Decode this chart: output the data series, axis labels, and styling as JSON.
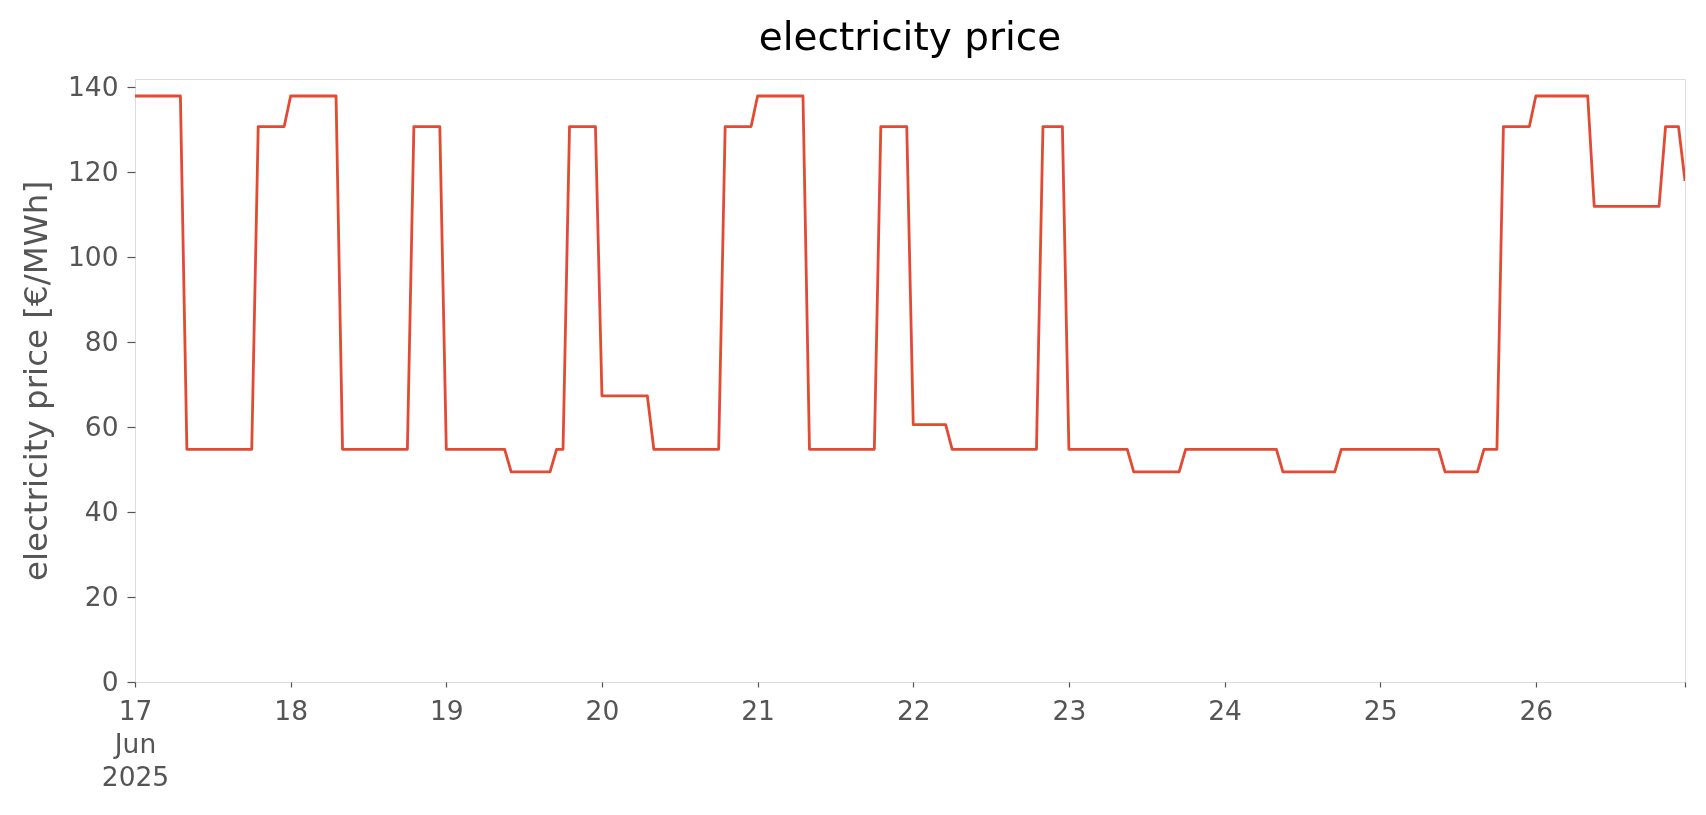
{
  "chart_data": {
    "type": "line",
    "title": "electricity price",
    "ylabel": "electricity price [€/MWh]",
    "x": [
      "2025-06-17T00:00",
      "2025-06-17T07:00",
      "2025-06-17T08:00",
      "2025-06-17T18:00",
      "2025-06-17T19:00",
      "2025-06-17T23:00",
      "2025-06-18T00:00",
      "2025-06-18T07:00",
      "2025-06-18T08:00",
      "2025-06-18T18:00",
      "2025-06-18T19:00",
      "2025-06-18T23:00",
      "2025-06-19T00:00",
      "2025-06-19T09:00",
      "2025-06-19T10:00",
      "2025-06-19T16:00",
      "2025-06-19T17:00",
      "2025-06-19T18:00",
      "2025-06-19T19:00",
      "2025-06-19T23:00",
      "2025-06-20T00:00",
      "2025-06-20T07:00",
      "2025-06-20T08:00",
      "2025-06-20T18:00",
      "2025-06-20T19:00",
      "2025-06-20T23:00",
      "2025-06-21T00:00",
      "2025-06-21T07:00",
      "2025-06-21T08:00",
      "2025-06-21T18:00",
      "2025-06-21T19:00",
      "2025-06-21T23:00",
      "2025-06-22T00:00",
      "2025-06-22T05:00",
      "2025-06-22T06:00",
      "2025-06-22T19:00",
      "2025-06-22T20:00",
      "2025-06-22T23:00",
      "2025-06-23T00:00",
      "2025-06-23T09:00",
      "2025-06-23T10:00",
      "2025-06-23T17:00",
      "2025-06-23T18:00",
      "2025-06-24T08:00",
      "2025-06-24T09:00",
      "2025-06-24T17:00",
      "2025-06-24T18:00",
      "2025-06-25T09:00",
      "2025-06-25T10:00",
      "2025-06-25T15:00",
      "2025-06-25T16:00",
      "2025-06-25T18:00",
      "2025-06-25T19:00",
      "2025-06-25T23:00",
      "2025-06-26T00:00",
      "2025-06-26T08:00",
      "2025-06-26T09:00",
      "2025-06-26T19:00",
      "2025-06-26T20:00",
      "2025-06-26T22:00",
      "2025-06-26T23:00"
    ],
    "series": [
      {
        "color": "#e24a33",
        "values": [
          138,
          138,
          54.8,
          54.8,
          130.8,
          130.8,
          138,
          138,
          54.8,
          54.8,
          130.8,
          130.8,
          54.8,
          54.8,
          49.5,
          49.5,
          54.8,
          54.8,
          130.8,
          130.8,
          67.4,
          67.4,
          54.8,
          54.8,
          130.8,
          130.8,
          138,
          138,
          54.8,
          54.8,
          130.8,
          130.8,
          60.6,
          60.6,
          54.8,
          54.8,
          130.8,
          130.8,
          54.8,
          54.8,
          49.5,
          49.5,
          54.8,
          54.8,
          49.5,
          49.5,
          54.8,
          54.8,
          49.5,
          49.5,
          54.8,
          54.8,
          130.8,
          130.8,
          138,
          138,
          112,
          112,
          130.8,
          130.8,
          118
        ]
      }
    ],
    "xlim": [
      "2025-06-17T00:00",
      "2025-06-26T23:00"
    ],
    "xticks": [
      {
        "value": "2025-06-17T00:00",
        "label": "17\nJun\n2025"
      },
      {
        "value": "2025-06-18T00:00",
        "label": "18"
      },
      {
        "value": "2025-06-19T00:00",
        "label": "19"
      },
      {
        "value": "2025-06-20T00:00",
        "label": "20"
      },
      {
        "value": "2025-06-21T00:00",
        "label": "21"
      },
      {
        "value": "2025-06-22T00:00",
        "label": "22"
      },
      {
        "value": "2025-06-23T00:00",
        "label": "23"
      },
      {
        "value": "2025-06-24T00:00",
        "label": "24"
      },
      {
        "value": "2025-06-25T00:00",
        "label": "25"
      },
      {
        "value": "2025-06-26T00:00",
        "label": "26"
      },
      {
        "value": "2025-06-26T23:00",
        "label": null
      }
    ],
    "ylim": [
      0,
      142
    ],
    "yticks": [
      0,
      20,
      40,
      60,
      80,
      100,
      120,
      140
    ],
    "grid": false
  }
}
